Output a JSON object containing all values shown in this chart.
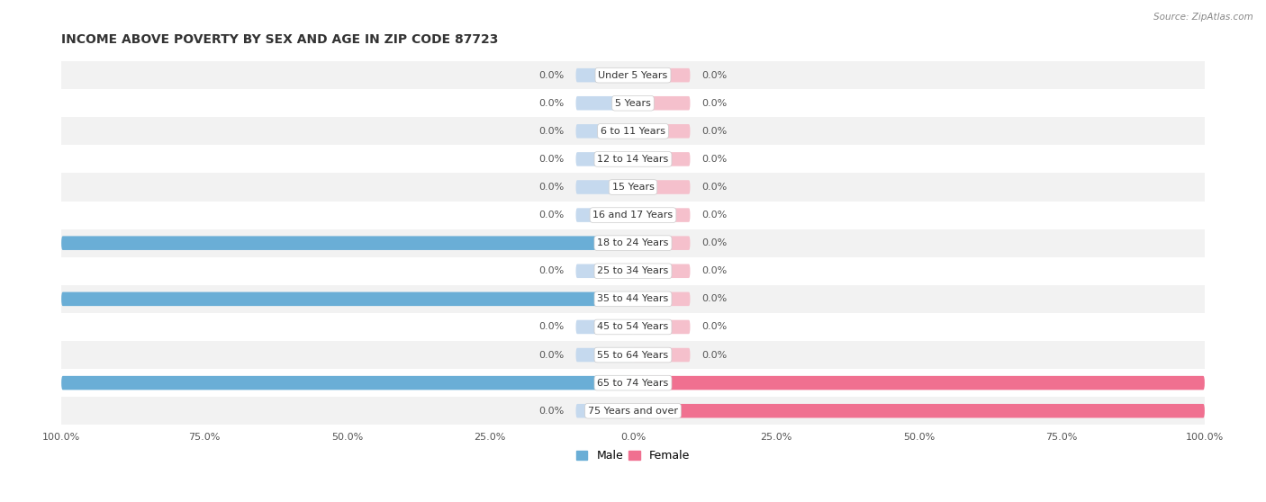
{
  "title": "INCOME ABOVE POVERTY BY SEX AND AGE IN ZIP CODE 87723",
  "source": "Source: ZipAtlas.com",
  "categories": [
    "Under 5 Years",
    "5 Years",
    "6 to 11 Years",
    "12 to 14 Years",
    "15 Years",
    "16 and 17 Years",
    "18 to 24 Years",
    "25 to 34 Years",
    "35 to 44 Years",
    "45 to 54 Years",
    "55 to 64 Years",
    "65 to 74 Years",
    "75 Years and over"
  ],
  "male_values": [
    0.0,
    0.0,
    0.0,
    0.0,
    0.0,
    0.0,
    100.0,
    0.0,
    100.0,
    0.0,
    0.0,
    100.0,
    0.0
  ],
  "female_values": [
    0.0,
    0.0,
    0.0,
    0.0,
    0.0,
    0.0,
    0.0,
    0.0,
    0.0,
    0.0,
    0.0,
    100.0,
    100.0
  ],
  "male_color": "#6aaed6",
  "female_color": "#f07090",
  "male_light_color": "#c5d9ee",
  "female_light_color": "#f5c0cc",
  "row_color_even": "#f2f2f2",
  "row_color_odd": "#ffffff",
  "bg_color": "#ffffff",
  "title_fontsize": 10,
  "label_fontsize": 8,
  "category_fontsize": 8,
  "bar_height": 0.5,
  "xlim": 100.0,
  "stub_size": 10.0,
  "legend_male": "Male",
  "legend_female": "Female"
}
